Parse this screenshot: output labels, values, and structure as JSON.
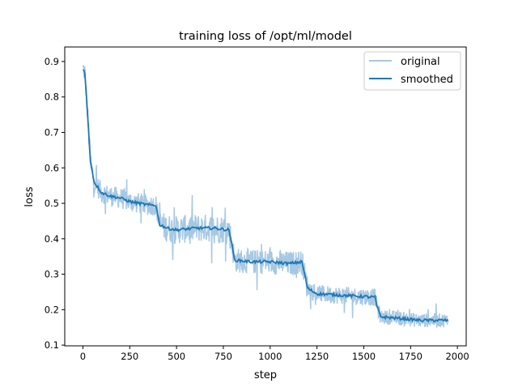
{
  "chart_data": {
    "type": "line",
    "title": "training loss of /opt/ml/model",
    "xlabel": "step",
    "ylabel": "loss",
    "xlim": [
      -97,
      2047
    ],
    "ylim": [
      0.098,
      0.941
    ],
    "xticks": [
      0,
      250,
      500,
      750,
      1000,
      1250,
      1500,
      1750,
      2000
    ],
    "yticks": [
      0.1,
      0.2,
      0.3,
      0.4,
      0.5,
      0.6,
      0.7,
      0.8,
      0.9
    ],
    "grid": false,
    "legend": {
      "placement": "top-right",
      "entries": [
        "original",
        "smoothed"
      ]
    },
    "colors": {
      "original": "#a6c8e3",
      "smoothed": "#1f77b4"
    },
    "series": [
      {
        "name": "smoothed",
        "x": [
          0,
          10,
          25,
          40,
          60,
          100,
          150,
          200,
          250,
          300,
          350,
          390,
          395,
          410,
          450,
          500,
          600,
          700,
          780,
          790,
          810,
          900,
          1000,
          1100,
          1170,
          1180,
          1200,
          1250,
          1400,
          1560,
          1570,
          1590,
          1700,
          1800,
          1950
        ],
        "y": [
          0.88,
          0.87,
          0.75,
          0.62,
          0.56,
          0.53,
          0.52,
          0.515,
          0.505,
          0.5,
          0.495,
          0.495,
          0.48,
          0.44,
          0.43,
          0.425,
          0.43,
          0.43,
          0.425,
          0.4,
          0.34,
          0.335,
          0.335,
          0.33,
          0.335,
          0.31,
          0.26,
          0.245,
          0.24,
          0.235,
          0.21,
          0.18,
          0.175,
          0.17,
          0.17
        ]
      },
      {
        "name": "original",
        "step_range": [
          0,
          1950
        ],
        "description_of_values": "noisy raw loss around smoothed curve",
        "noise_amplitude": [
          [
            0,
            0.03
          ],
          [
            400,
            0.04
          ],
          [
            800,
            0.035
          ],
          [
            1200,
            0.025
          ],
          [
            1580,
            0.02
          ]
        ]
      }
    ]
  }
}
